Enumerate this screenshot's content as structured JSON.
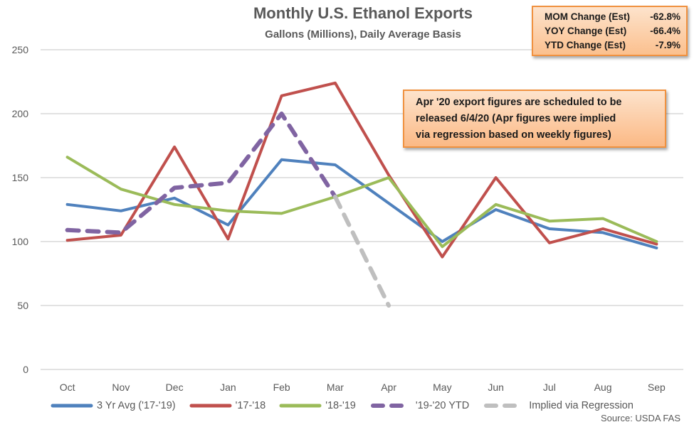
{
  "chart_data": {
    "type": "line",
    "title": "Monthly U.S. Ethanol Exports",
    "subtitle": "Gallons (Millions), Daily Average Basis",
    "xlabel": "",
    "ylabel": "",
    "categories": [
      "Oct",
      "Nov",
      "Dec",
      "Jan",
      "Feb",
      "Mar",
      "Apr",
      "May",
      "Jun",
      "Jul",
      "Aug",
      "Sep"
    ],
    "ylim": [
      0,
      250
    ],
    "yticks": [
      "0",
      "50",
      "100",
      "150",
      "200",
      "250"
    ],
    "grid": true,
    "legend_position": "bottom",
    "series": [
      {
        "name": "3 Yr Avg ('17-'19)",
        "color": "#4f81bd",
        "dashed": false,
        "values": [
          129,
          124,
          134,
          113,
          164,
          160,
          130,
          100,
          125,
          110,
          107,
          95
        ]
      },
      {
        "name": "'17-'18",
        "color": "#c0504d",
        "dashed": false,
        "values": [
          101,
          105,
          174,
          102,
          214,
          224,
          152,
          88,
          150,
          99,
          110,
          98
        ]
      },
      {
        "name": "'18-'19",
        "color": "#9bbb59",
        "dashed": false,
        "values": [
          166,
          141,
          129,
          124,
          122,
          135,
          150,
          96,
          129,
          116,
          118,
          100
        ]
      },
      {
        "name": "'19-'20 YTD",
        "color": "#8064a2",
        "dashed": true,
        "values": [
          109,
          107,
          142,
          146,
          200,
          135,
          null,
          null,
          null,
          null,
          null,
          null
        ]
      },
      {
        "name": "Implied via Regression",
        "color": "#bfbfbf",
        "dashed": true,
        "values": [
          null,
          null,
          null,
          null,
          null,
          135,
          50,
          null,
          null,
          null,
          null,
          null
        ]
      }
    ],
    "annotations": [
      "Apr '20 export figures are scheduled to be released 6/4/20 (Apr figures were implied via regression based on weekly figures)"
    ]
  },
  "stats_box": {
    "rows": [
      {
        "label": "MOM Change (Est)",
        "value": "-62.8%"
      },
      {
        "label": "YOY Change (Est)",
        "value": "-66.4%"
      },
      {
        "label": "YTD Change (Est)",
        "value": "-7.9%"
      }
    ]
  },
  "note": {
    "lines": [
      "Apr '20 export figures are scheduled to be",
      "released 6/4/20 (Apr figures were implied",
      "via regression based on weekly figures)"
    ]
  },
  "source": "Source: USDA FAS"
}
